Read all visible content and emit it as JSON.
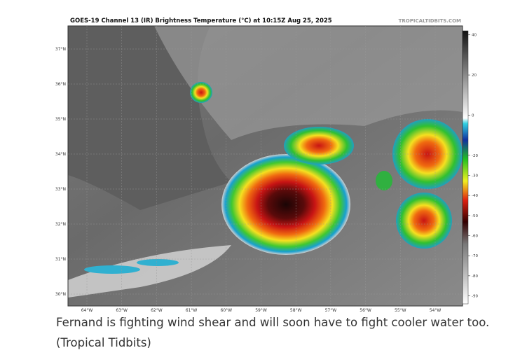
{
  "header": {
    "title": "GOES-19 Channel 13 (IR) Brightness Temperature (°C) at 10:15Z Aug 25, 2025",
    "source": "TROPICALTIDBITS.COM"
  },
  "map": {
    "lat_labels": [
      "37°N",
      "36°N",
      "35°N",
      "34°N",
      "33°N",
      "32°N",
      "31°N",
      "30°N"
    ],
    "lon_labels": [
      "64°W",
      "63°W",
      "62°W",
      "61°W",
      "60°W",
      "59°W",
      "58°W",
      "57°W",
      "56°W",
      "55°W",
      "54°W"
    ]
  },
  "colorbar": {
    "lim": [
      42,
      -94
    ],
    "ticks": [
      40,
      20,
      0,
      -20,
      -30,
      -40,
      -50,
      -60,
      -70,
      -80,
      -90
    ]
  },
  "caption": {
    "line1": "Fernand is fighting wind shear and will soon have to fight cooler water too.",
    "line2": "(Tropical Tidbits)"
  }
}
